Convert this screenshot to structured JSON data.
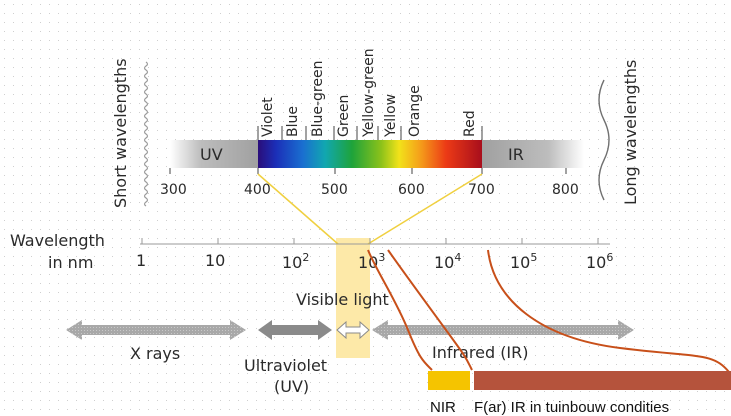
{
  "side_labels": {
    "short": "Short wavelengths",
    "long": "Long wavelengths"
  },
  "visible_band": {
    "uv_label": "UV",
    "ir_label": "IR",
    "colors": [
      "Violet",
      "Blue",
      "Blue-green",
      "Green",
      "Yellow-green",
      "Yellow",
      "Orange",
      "Red"
    ],
    "ticks": [
      "300",
      "400",
      "500",
      "600",
      "700",
      "800"
    ]
  },
  "axis": {
    "label_line1": "Wavelength",
    "label_line2": "in nm",
    "ticks": [
      {
        "base": "1",
        "exp": ""
      },
      {
        "base": "10",
        "exp": ""
      },
      {
        "base": "10",
        "exp": "2"
      },
      {
        "base": "10",
        "exp": "3"
      },
      {
        "base": "10",
        "exp": "4"
      },
      {
        "base": "10",
        "exp": "5"
      },
      {
        "base": "10",
        "exp": "6"
      }
    ]
  },
  "regions": {
    "visible_light": "Visible light",
    "x_rays": "X rays",
    "ultraviolet_line1": "Ultraviolet",
    "ultraviolet_line2": "(UV)",
    "infrared": "Infrared (IR)"
  },
  "annotations": {
    "nir": "NIR",
    "far_ir": "F(ar) IR in tuinbouw condities"
  },
  "colors": {
    "nir_bar": "#f5c400",
    "far_ir_bar": "#b5533c",
    "annotation_lines": "#c8501a",
    "visible_column": "#fde9a8",
    "projection_lines": "#f0d040",
    "band_gray": "#a8a8a8"
  }
}
